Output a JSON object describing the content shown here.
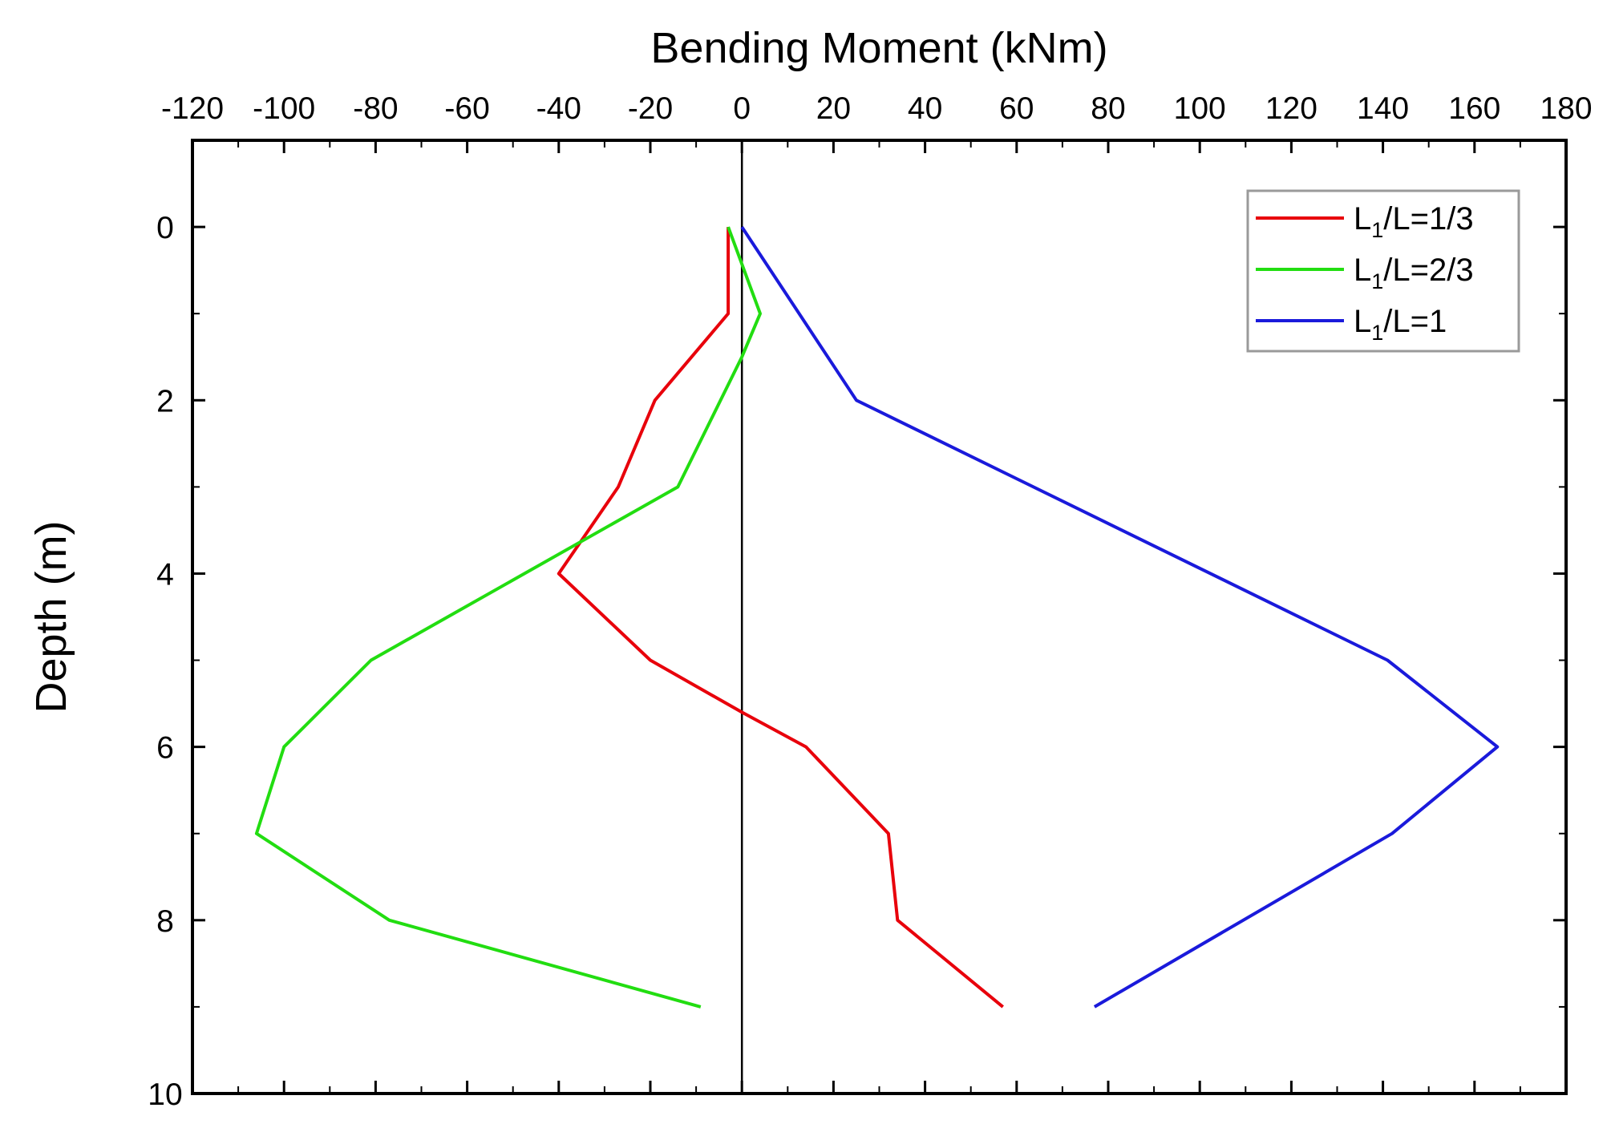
{
  "chart_data": {
    "type": "line",
    "title": "Bending Moment (kNm)",
    "xlabel": "Bending Moment (kNm)",
    "ylabel": "Depth (m)",
    "xlim": [
      -120,
      180
    ],
    "ylim": [
      10,
      -1
    ],
    "x_axis_position": "top",
    "y_inverted": true,
    "xticks": [
      -120,
      -100,
      -80,
      -60,
      -40,
      -20,
      0,
      20,
      40,
      60,
      80,
      100,
      120,
      140,
      160,
      180
    ],
    "yticks": [
      0,
      2,
      4,
      6,
      8,
      10
    ],
    "grid": false,
    "zero_line": true,
    "legend_position": "top-right",
    "series": [
      {
        "name": "L1/L=1/3",
        "legend_main": "L",
        "legend_sub": "1",
        "legend_tail": "/L=1/3",
        "color": "#e8000b",
        "points": [
          [
            -3,
            0
          ],
          [
            -3,
            1
          ],
          [
            -19,
            2
          ],
          [
            -27,
            3
          ],
          [
            -40,
            4
          ],
          [
            -20,
            5
          ],
          [
            0,
            5.6
          ],
          [
            14,
            6
          ],
          [
            32,
            7
          ],
          [
            34,
            8
          ],
          [
            57,
            9
          ]
        ]
      },
      {
        "name": "L1/L=2/3",
        "legend_main": "L",
        "legend_sub": "1",
        "legend_tail": "/L=2/3",
        "color": "#22dd11",
        "points": [
          [
            -3,
            0
          ],
          [
            4,
            1
          ],
          [
            0,
            1.5
          ],
          [
            -14,
            3
          ],
          [
            -81,
            5
          ],
          [
            -100,
            6
          ],
          [
            -106,
            7
          ],
          [
            -77,
            8
          ],
          [
            -9,
            9
          ]
        ]
      },
      {
        "name": "L1/L=1",
        "legend_main": "L",
        "legend_sub": "1",
        "legend_tail": "/L=1",
        "color": "#1a1adb",
        "points": [
          [
            0,
            0
          ],
          [
            25,
            2
          ],
          [
            141,
            5
          ],
          [
            165,
            6
          ],
          [
            142,
            7
          ],
          [
            77,
            9
          ]
        ]
      }
    ]
  }
}
